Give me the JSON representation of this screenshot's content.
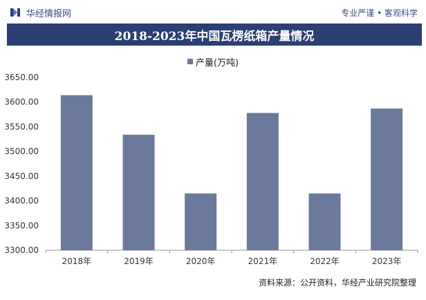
{
  "header": {
    "brand": "华经情报网",
    "tagline": "专业严谨 • 客观科学"
  },
  "footer": {
    "source": "资料来源：公开资料，华经产业研究院整理"
  },
  "colors": {
    "bar": "#6b7a9c",
    "title_bg": "#2b3f73",
    "brand": "#3a4f7a"
  },
  "chart_data": {
    "type": "bar",
    "title": "2018-2023年中国瓦楞纸箱产量情况",
    "categories": [
      "2018年",
      "2019年",
      "2020年",
      "2021年",
      "2022年",
      "2023年"
    ],
    "series": [
      {
        "name": "产量(万吨)",
        "values": [
          3614,
          3534,
          3415,
          3578,
          3415,
          3587
        ]
      }
    ],
    "yticks": [
      "3300.00",
      "3350.00",
      "3400.00",
      "3450.00",
      "3500.00",
      "3550.00",
      "3600.00",
      "3650.00"
    ],
    "ylim": [
      3300,
      3650
    ],
    "legend": "top-center",
    "grid": false
  }
}
